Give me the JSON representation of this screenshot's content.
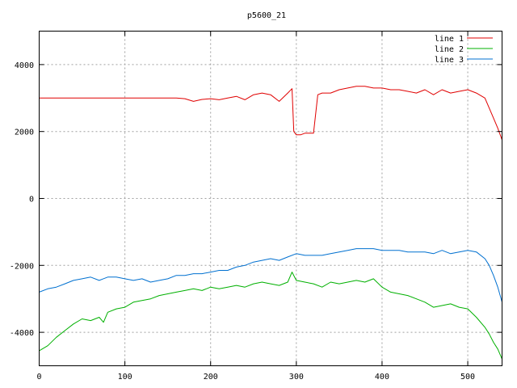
{
  "chart_data": {
    "type": "line",
    "title": "p5600_21",
    "xlabel": "",
    "ylabel": "",
    "xlim": [
      0,
      540
    ],
    "ylim": [
      -5000,
      5000
    ],
    "xticks": [
      0,
      100,
      200,
      300,
      400,
      500
    ],
    "yticks": [
      -4000,
      -2000,
      0,
      2000,
      4000
    ],
    "grid": true,
    "legend_position": "top-right",
    "series": [
      {
        "name": "line 1",
        "color": "#e00000",
        "x": [
          0,
          150,
          160,
          170,
          180,
          190,
          200,
          210,
          220,
          230,
          240,
          250,
          260,
          270,
          280,
          290,
          295,
          297,
          300,
          305,
          310,
          320,
          325,
          330,
          340,
          350,
          360,
          370,
          380,
          390,
          400,
          410,
          420,
          430,
          440,
          450,
          460,
          470,
          480,
          490,
          500,
          510,
          520,
          525,
          530,
          535,
          540
        ],
        "y": [
          3000,
          3000,
          3000,
          2980,
          2900,
          2960,
          2980,
          2950,
          3000,
          3050,
          2950,
          3100,
          3150,
          3100,
          2900,
          3150,
          3280,
          2000,
          1900,
          1900,
          1950,
          1950,
          3100,
          3150,
          3150,
          3250,
          3300,
          3350,
          3350,
          3300,
          3300,
          3250,
          3250,
          3200,
          3150,
          3250,
          3100,
          3250,
          3150,
          3200,
          3250,
          3150,
          3000,
          2700,
          2400,
          2100,
          1750
        ]
      },
      {
        "name": "line 2",
        "color": "#00b000",
        "x": [
          0,
          10,
          20,
          30,
          40,
          50,
          60,
          70,
          75,
          80,
          90,
          100,
          110,
          120,
          130,
          140,
          150,
          160,
          170,
          180,
          190,
          200,
          210,
          220,
          230,
          240,
          250,
          260,
          270,
          280,
          290,
          295,
          300,
          310,
          320,
          330,
          340,
          350,
          360,
          370,
          380,
          390,
          400,
          410,
          420,
          430,
          440,
          450,
          460,
          470,
          480,
          490,
          500,
          510,
          520,
          525,
          530,
          535,
          540
        ],
        "y": [
          -4550,
          -4400,
          -4150,
          -3950,
          -3750,
          -3600,
          -3650,
          -3550,
          -3700,
          -3400,
          -3300,
          -3250,
          -3100,
          -3050,
          -3000,
          -2900,
          -2850,
          -2800,
          -2750,
          -2700,
          -2750,
          -2650,
          -2700,
          -2650,
          -2600,
          -2650,
          -2550,
          -2500,
          -2550,
          -2600,
          -2500,
          -2200,
          -2450,
          -2500,
          -2550,
          -2650,
          -2500,
          -2550,
          -2500,
          -2450,
          -2500,
          -2400,
          -2650,
          -2800,
          -2850,
          -2900,
          -3000,
          -3100,
          -3250,
          -3200,
          -3150,
          -3250,
          -3300,
          -3550,
          -3850,
          -4050,
          -4300,
          -4500,
          -4800
        ]
      },
      {
        "name": "line 3",
        "color": "#0070d0",
        "x": [
          0,
          10,
          20,
          30,
          40,
          50,
          60,
          70,
          80,
          90,
          100,
          110,
          120,
          130,
          140,
          150,
          160,
          170,
          180,
          190,
          200,
          210,
          220,
          230,
          240,
          250,
          260,
          270,
          280,
          290,
          300,
          310,
          320,
          330,
          340,
          350,
          360,
          370,
          380,
          390,
          400,
          410,
          420,
          430,
          440,
          450,
          460,
          470,
          480,
          490,
          500,
          510,
          520,
          525,
          530,
          535,
          540
        ],
        "y": [
          -2800,
          -2700,
          -2650,
          -2550,
          -2450,
          -2400,
          -2350,
          -2450,
          -2350,
          -2350,
          -2400,
          -2450,
          -2400,
          -2500,
          -2450,
          -2400,
          -2300,
          -2300,
          -2250,
          -2250,
          -2200,
          -2150,
          -2150,
          -2050,
          -2000,
          -1900,
          -1850,
          -1800,
          -1850,
          -1750,
          -1650,
          -1700,
          -1700,
          -1700,
          -1650,
          -1600,
          -1550,
          -1500,
          -1500,
          -1500,
          -1550,
          -1550,
          -1550,
          -1600,
          -1600,
          -1600,
          -1650,
          -1550,
          -1650,
          -1600,
          -1550,
          -1600,
          -1800,
          -2000,
          -2300,
          -2650,
          -3100
        ]
      }
    ]
  }
}
